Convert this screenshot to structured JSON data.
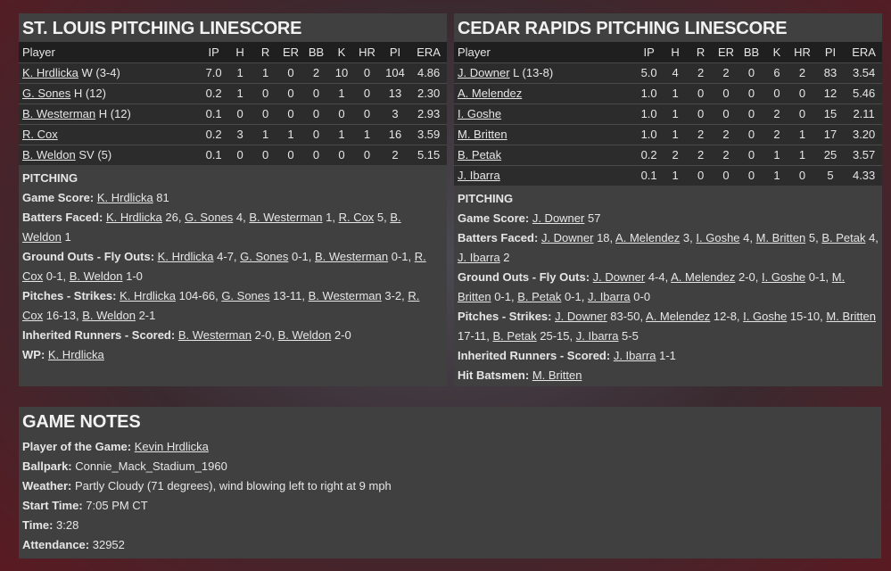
{
  "columns": [
    "Player",
    "IP",
    "H",
    "R",
    "ER",
    "BB",
    "K",
    "HR",
    "PI",
    "ERA"
  ],
  "left": {
    "title": "ST. LOUIS PITCHING LINESCORE",
    "rows": [
      {
        "name": "K. Hrdlicka",
        "note": "W (3-4)",
        "stats": [
          "7.0",
          "1",
          "1",
          "0",
          "2",
          "10",
          "0",
          "104",
          "4.86"
        ]
      },
      {
        "name": "G. Sones",
        "note": "H (12)",
        "stats": [
          "0.2",
          "1",
          "0",
          "0",
          "0",
          "1",
          "0",
          "13",
          "2.30"
        ]
      },
      {
        "name": "B. Westerman",
        "note": "H (12)",
        "stats": [
          "0.1",
          "0",
          "0",
          "0",
          "0",
          "0",
          "0",
          "3",
          "2.93"
        ]
      },
      {
        "name": "R. Cox",
        "note": "",
        "stats": [
          "0.2",
          "3",
          "1",
          "1",
          "0",
          "1",
          "1",
          "16",
          "3.59"
        ]
      },
      {
        "name": "B. Weldon",
        "note": "SV (5)",
        "stats": [
          "0.1",
          "0",
          "0",
          "0",
          "0",
          "0",
          "0",
          "2",
          "5.15"
        ]
      }
    ],
    "section": "PITCHING",
    "notes": [
      {
        "label": "Game Score:",
        "parts": [
          {
            "l": "K. Hrdlicka"
          },
          {
            "t": " 81"
          }
        ]
      },
      {
        "label": "Batters Faced:",
        "parts": [
          {
            "l": "K. Hrdlicka"
          },
          {
            "t": " 26, "
          },
          {
            "l": "G. Sones"
          },
          {
            "t": " 4, "
          },
          {
            "l": "B. Westerman"
          },
          {
            "t": " 1, "
          },
          {
            "l": "R. Cox"
          },
          {
            "t": " 5, "
          },
          {
            "l": "B. Weldon"
          },
          {
            "t": " 1"
          }
        ]
      },
      {
        "label": "Ground Outs - Fly Outs:",
        "parts": [
          {
            "l": "K. Hrdlicka"
          },
          {
            "t": " 4-7, "
          },
          {
            "l": "G. Sones"
          },
          {
            "t": " 0-1, "
          },
          {
            "l": "B. Westerman"
          },
          {
            "t": " 0-1, "
          },
          {
            "l": "R. Cox"
          },
          {
            "t": " 0-1, "
          },
          {
            "l": "B. Weldon"
          },
          {
            "t": " 1-0"
          }
        ]
      },
      {
        "label": "Pitches - Strikes:",
        "parts": [
          {
            "l": "K. Hrdlicka"
          },
          {
            "t": " 104-66, "
          },
          {
            "l": "G. Sones"
          },
          {
            "t": " 13-11, "
          },
          {
            "l": "B. Westerman"
          },
          {
            "t": " 3-2, "
          },
          {
            "l": "R. Cox"
          },
          {
            "t": " 16-13, "
          },
          {
            "l": "B. Weldon"
          },
          {
            "t": " 2-1"
          }
        ]
      },
      {
        "label": "Inherited Runners - Scored:",
        "parts": [
          {
            "l": "B. Westerman"
          },
          {
            "t": " 2-0, "
          },
          {
            "l": "B. Weldon"
          },
          {
            "t": " 2-0"
          }
        ]
      },
      {
        "label": "WP:",
        "parts": [
          {
            "l": "K. Hrdlicka"
          }
        ]
      }
    ]
  },
  "right": {
    "title": "CEDAR RAPIDS PITCHING LINESCORE",
    "rows": [
      {
        "name": "J. Downer",
        "note": "L (13-8)",
        "stats": [
          "5.0",
          "4",
          "2",
          "2",
          "0",
          "6",
          "2",
          "83",
          "3.54"
        ]
      },
      {
        "name": "A. Melendez",
        "note": "",
        "stats": [
          "1.0",
          "1",
          "0",
          "0",
          "0",
          "0",
          "0",
          "12",
          "5.46"
        ]
      },
      {
        "name": "I. Goshe",
        "note": "",
        "stats": [
          "1.0",
          "1",
          "0",
          "0",
          "0",
          "2",
          "0",
          "15",
          "2.11"
        ]
      },
      {
        "name": "M. Britten",
        "note": "",
        "stats": [
          "1.0",
          "1",
          "2",
          "2",
          "0",
          "2",
          "1",
          "17",
          "3.20"
        ]
      },
      {
        "name": "B. Petak",
        "note": "",
        "stats": [
          "0.2",
          "2",
          "2",
          "2",
          "0",
          "1",
          "1",
          "25",
          "3.57"
        ]
      },
      {
        "name": "J. Ibarra",
        "note": "",
        "stats": [
          "0.1",
          "1",
          "0",
          "0",
          "0",
          "1",
          "0",
          "5",
          "4.33"
        ]
      }
    ],
    "section": "PITCHING",
    "notes": [
      {
        "label": "Game Score:",
        "parts": [
          {
            "l": "J. Downer"
          },
          {
            "t": " 57"
          }
        ]
      },
      {
        "label": "Batters Faced:",
        "parts": [
          {
            "l": "J. Downer"
          },
          {
            "t": " 18, "
          },
          {
            "l": "A. Melendez"
          },
          {
            "t": " 3, "
          },
          {
            "l": "I. Goshe"
          },
          {
            "t": " 4, "
          },
          {
            "l": "M. Britten"
          },
          {
            "t": " 5, "
          },
          {
            "l": "B. Petak"
          },
          {
            "t": " 4, "
          },
          {
            "l": "J. Ibarra"
          },
          {
            "t": " 2"
          }
        ]
      },
      {
        "label": "Ground Outs - Fly Outs:",
        "parts": [
          {
            "l": "J. Downer"
          },
          {
            "t": " 4-4, "
          },
          {
            "l": "A. Melendez"
          },
          {
            "t": " 2-0, "
          },
          {
            "l": "I. Goshe"
          },
          {
            "t": " 0-1, "
          },
          {
            "l": "M. Britten"
          },
          {
            "t": " 0-1, "
          },
          {
            "l": "B. Petak"
          },
          {
            "t": " 0-1, "
          },
          {
            "l": "J. Ibarra"
          },
          {
            "t": " 0-0"
          }
        ]
      },
      {
        "label": "Pitches - Strikes:",
        "parts": [
          {
            "l": "J. Downer"
          },
          {
            "t": " 83-50, "
          },
          {
            "l": "A. Melendez"
          },
          {
            "t": " 12-8, "
          },
          {
            "l": "I. Goshe"
          },
          {
            "t": " 15-10, "
          },
          {
            "l": "M. Britten"
          },
          {
            "t": " 17-11, "
          },
          {
            "l": "B. Petak"
          },
          {
            "t": " 25-15, "
          },
          {
            "l": "J. Ibarra"
          },
          {
            "t": " 5-5"
          }
        ]
      },
      {
        "label": "Inherited Runners - Scored:",
        "parts": [
          {
            "l": "J. Ibarra"
          },
          {
            "t": " 1-1"
          }
        ]
      },
      {
        "label": "Hit Batsmen:",
        "parts": [
          {
            "l": "M. Britten"
          }
        ]
      }
    ]
  },
  "game_notes": {
    "title": "GAME NOTES",
    "notes": [
      {
        "label": "Player of the Game:",
        "parts": [
          {
            "l": "Kevin Hrdlicka"
          }
        ]
      },
      {
        "label": "Ballpark:",
        "parts": [
          {
            "t": " Connie_Mack_Stadium_1960"
          }
        ]
      },
      {
        "label": "Weather:",
        "parts": [
          {
            "t": " Partly Cloudy (71 degrees), wind blowing left to right at 9 mph"
          }
        ]
      },
      {
        "label": "Start Time:",
        "parts": [
          {
            "t": " 7:05 PM CT"
          }
        ]
      },
      {
        "label": "Time:",
        "parts": [
          {
            "t": " 3:28"
          }
        ]
      },
      {
        "label": "Attendance:",
        "parts": [
          {
            "t": " 32952"
          }
        ]
      }
    ]
  }
}
